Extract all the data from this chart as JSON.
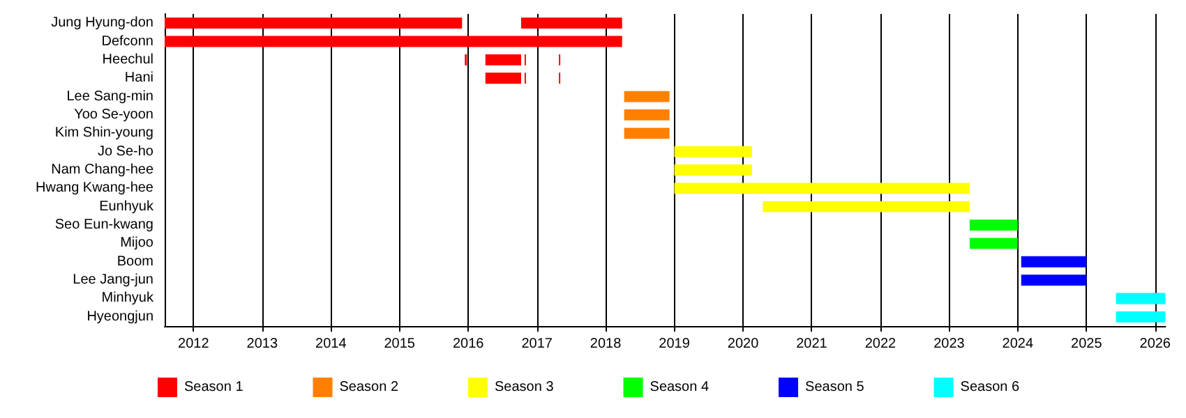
{
  "chart_data": {
    "type": "bar",
    "orientation": "horizontal",
    "categories": [
      "Jung Hyung-don",
      "Defconn",
      "Heechul",
      "Hani",
      "Lee Sang-min",
      "Yoo Se-yoon",
      "Kim Shin-young",
      "Jo Se-ho",
      "Nam Chang-hee",
      "Hwang Kwang-hee",
      "Eunhyuk",
      "Seo Eun-kwang",
      "Mijoo",
      "Boom",
      "Lee Jang-jun",
      "Minhyuk",
      "Hyeongjun"
    ],
    "xlim": [
      2011.58,
      2026.15
    ],
    "xticks": [
      2012,
      2013,
      2014,
      2015,
      2016,
      2017,
      2018,
      2019,
      2020,
      2021,
      2022,
      2023,
      2024,
      2025,
      2026
    ],
    "grid": "x",
    "legend": "bottom",
    "series": [
      {
        "name": "Season 1",
        "color": "#ff0000",
        "base": [
          2011.58,
          2011.58,
          2016.25,
          2016.25,
          null,
          null,
          null,
          null,
          null,
          null,
          null,
          null,
          null,
          null,
          null,
          null,
          null
        ],
        "values": [
          4.33,
          6.66,
          0.52,
          0.52,
          null,
          null,
          null,
          null,
          null,
          null,
          null,
          null,
          null,
          null,
          null,
          null,
          null
        ]
      },
      {
        "color": "#ff0000",
        "base": [
          2016.77,
          null,
          2015.95,
          null,
          null,
          null,
          null,
          null,
          null,
          null,
          null,
          null,
          null,
          null,
          null,
          null,
          null
        ],
        "values": [
          1.47,
          null,
          0.03,
          null,
          null,
          null,
          null,
          null,
          null,
          null,
          null,
          null,
          null,
          null,
          null,
          null,
          null
        ]
      },
      {
        "color": "#ff0000",
        "base": [
          null,
          null,
          2016.82,
          2016.82,
          null,
          null,
          null,
          null,
          null,
          null,
          null,
          null,
          null,
          null,
          null,
          null,
          null
        ],
        "values": [
          null,
          null,
          0.02,
          0.02,
          null,
          null,
          null,
          null,
          null,
          null,
          null,
          null,
          null,
          null,
          null,
          null,
          null
        ]
      },
      {
        "color": "#ff0000",
        "base": [
          null,
          null,
          2017.32,
          2017.32,
          null,
          null,
          null,
          null,
          null,
          null,
          null,
          null,
          null,
          null,
          null,
          null,
          null
        ],
        "values": [
          null,
          null,
          0.02,
          0.02,
          null,
          null,
          null,
          null,
          null,
          null,
          null,
          null,
          null,
          null,
          null,
          null,
          null
        ]
      },
      {
        "name": "Season 2",
        "color": "#ff8000",
        "base": [
          null,
          null,
          null,
          null,
          2018.27,
          2018.27,
          2018.27,
          null,
          null,
          null,
          null,
          null,
          null,
          null,
          null,
          null,
          null
        ],
        "values": [
          null,
          null,
          null,
          null,
          0.66,
          0.66,
          0.66,
          null,
          null,
          null,
          null,
          null,
          null,
          null,
          null,
          null,
          null
        ]
      },
      {
        "name": "Season 3",
        "color": "#ffff00",
        "base": [
          null,
          null,
          null,
          null,
          null,
          null,
          null,
          2019,
          2019,
          2019,
          2020.29,
          null,
          null,
          null,
          null,
          null,
          null
        ],
        "values": [
          null,
          null,
          null,
          null,
          null,
          null,
          null,
          1.13,
          1.13,
          4.3,
          3.01,
          null,
          null,
          null,
          null,
          null,
          null
        ]
      },
      {
        "name": "Season 4",
        "color": "#00ff00",
        "base": [
          null,
          null,
          null,
          null,
          null,
          null,
          null,
          null,
          null,
          null,
          null,
          2023.3,
          2023.3,
          null,
          null,
          null,
          null
        ],
        "values": [
          null,
          null,
          null,
          null,
          null,
          null,
          null,
          null,
          null,
          null,
          null,
          0.7,
          0.7,
          null,
          null,
          null,
          null
        ]
      },
      {
        "name": "Season 5",
        "color": "#0000ff",
        "base": [
          null,
          null,
          null,
          null,
          null,
          null,
          null,
          null,
          null,
          null,
          null,
          null,
          null,
          2024.05,
          2024.05,
          null,
          null
        ],
        "values": [
          null,
          null,
          null,
          null,
          null,
          null,
          null,
          null,
          null,
          null,
          null,
          null,
          null,
          0.95,
          0.95,
          null,
          null
        ]
      },
      {
        "name": "Season 6",
        "color": "#00ffff",
        "base": [
          null,
          null,
          null,
          null,
          null,
          null,
          null,
          null,
          null,
          null,
          null,
          null,
          null,
          null,
          null,
          2025.43,
          2025.43
        ],
        "values": [
          null,
          null,
          null,
          null,
          null,
          null,
          null,
          null,
          null,
          null,
          null,
          null,
          null,
          null,
          null,
          0.72,
          0.72
        ]
      }
    ]
  }
}
